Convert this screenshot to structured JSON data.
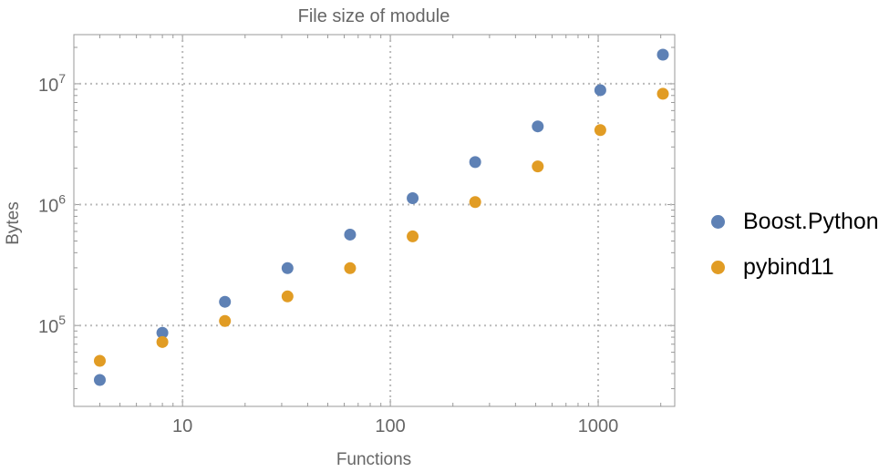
{
  "chart_data": {
    "type": "scatter",
    "title": "File size of module",
    "xlabel": "Functions",
    "ylabel": "Bytes",
    "xscale": "log",
    "yscale": "log",
    "xlim": [
      3.0,
      2335
    ],
    "ylim": [
      21400,
      25500000
    ],
    "grid": true,
    "legend_position": "right",
    "x_ticks": [
      {
        "v": 10,
        "label": "10"
      },
      {
        "v": 100,
        "label": "100"
      },
      {
        "v": 1000,
        "label": "1000"
      }
    ],
    "y_ticks": [
      {
        "v": 100000,
        "base": "10",
        "exp": "5"
      },
      {
        "v": 1000000,
        "base": "10",
        "exp": "6"
      },
      {
        "v": 10000000,
        "base": "10",
        "exp": "7"
      }
    ],
    "series": [
      {
        "name": "Boost.Python",
        "color": "#5E81B5",
        "x": [
          4,
          8,
          16,
          32,
          64,
          128,
          256,
          512,
          1024,
          2048
        ],
        "y": [
          35400,
          87000,
          157000,
          298000,
          565000,
          1130000,
          2250000,
          4440000,
          8850000,
          17400000
        ]
      },
      {
        "name": "pybind11",
        "color": "#E19C24",
        "x": [
          4,
          8,
          16,
          32,
          64,
          128,
          256,
          512,
          1024,
          2048
        ],
        "y": [
          51000,
          73000,
          109000,
          174000,
          298000,
          546000,
          1050000,
          2070000,
          4140000,
          8260000
        ]
      }
    ]
  }
}
